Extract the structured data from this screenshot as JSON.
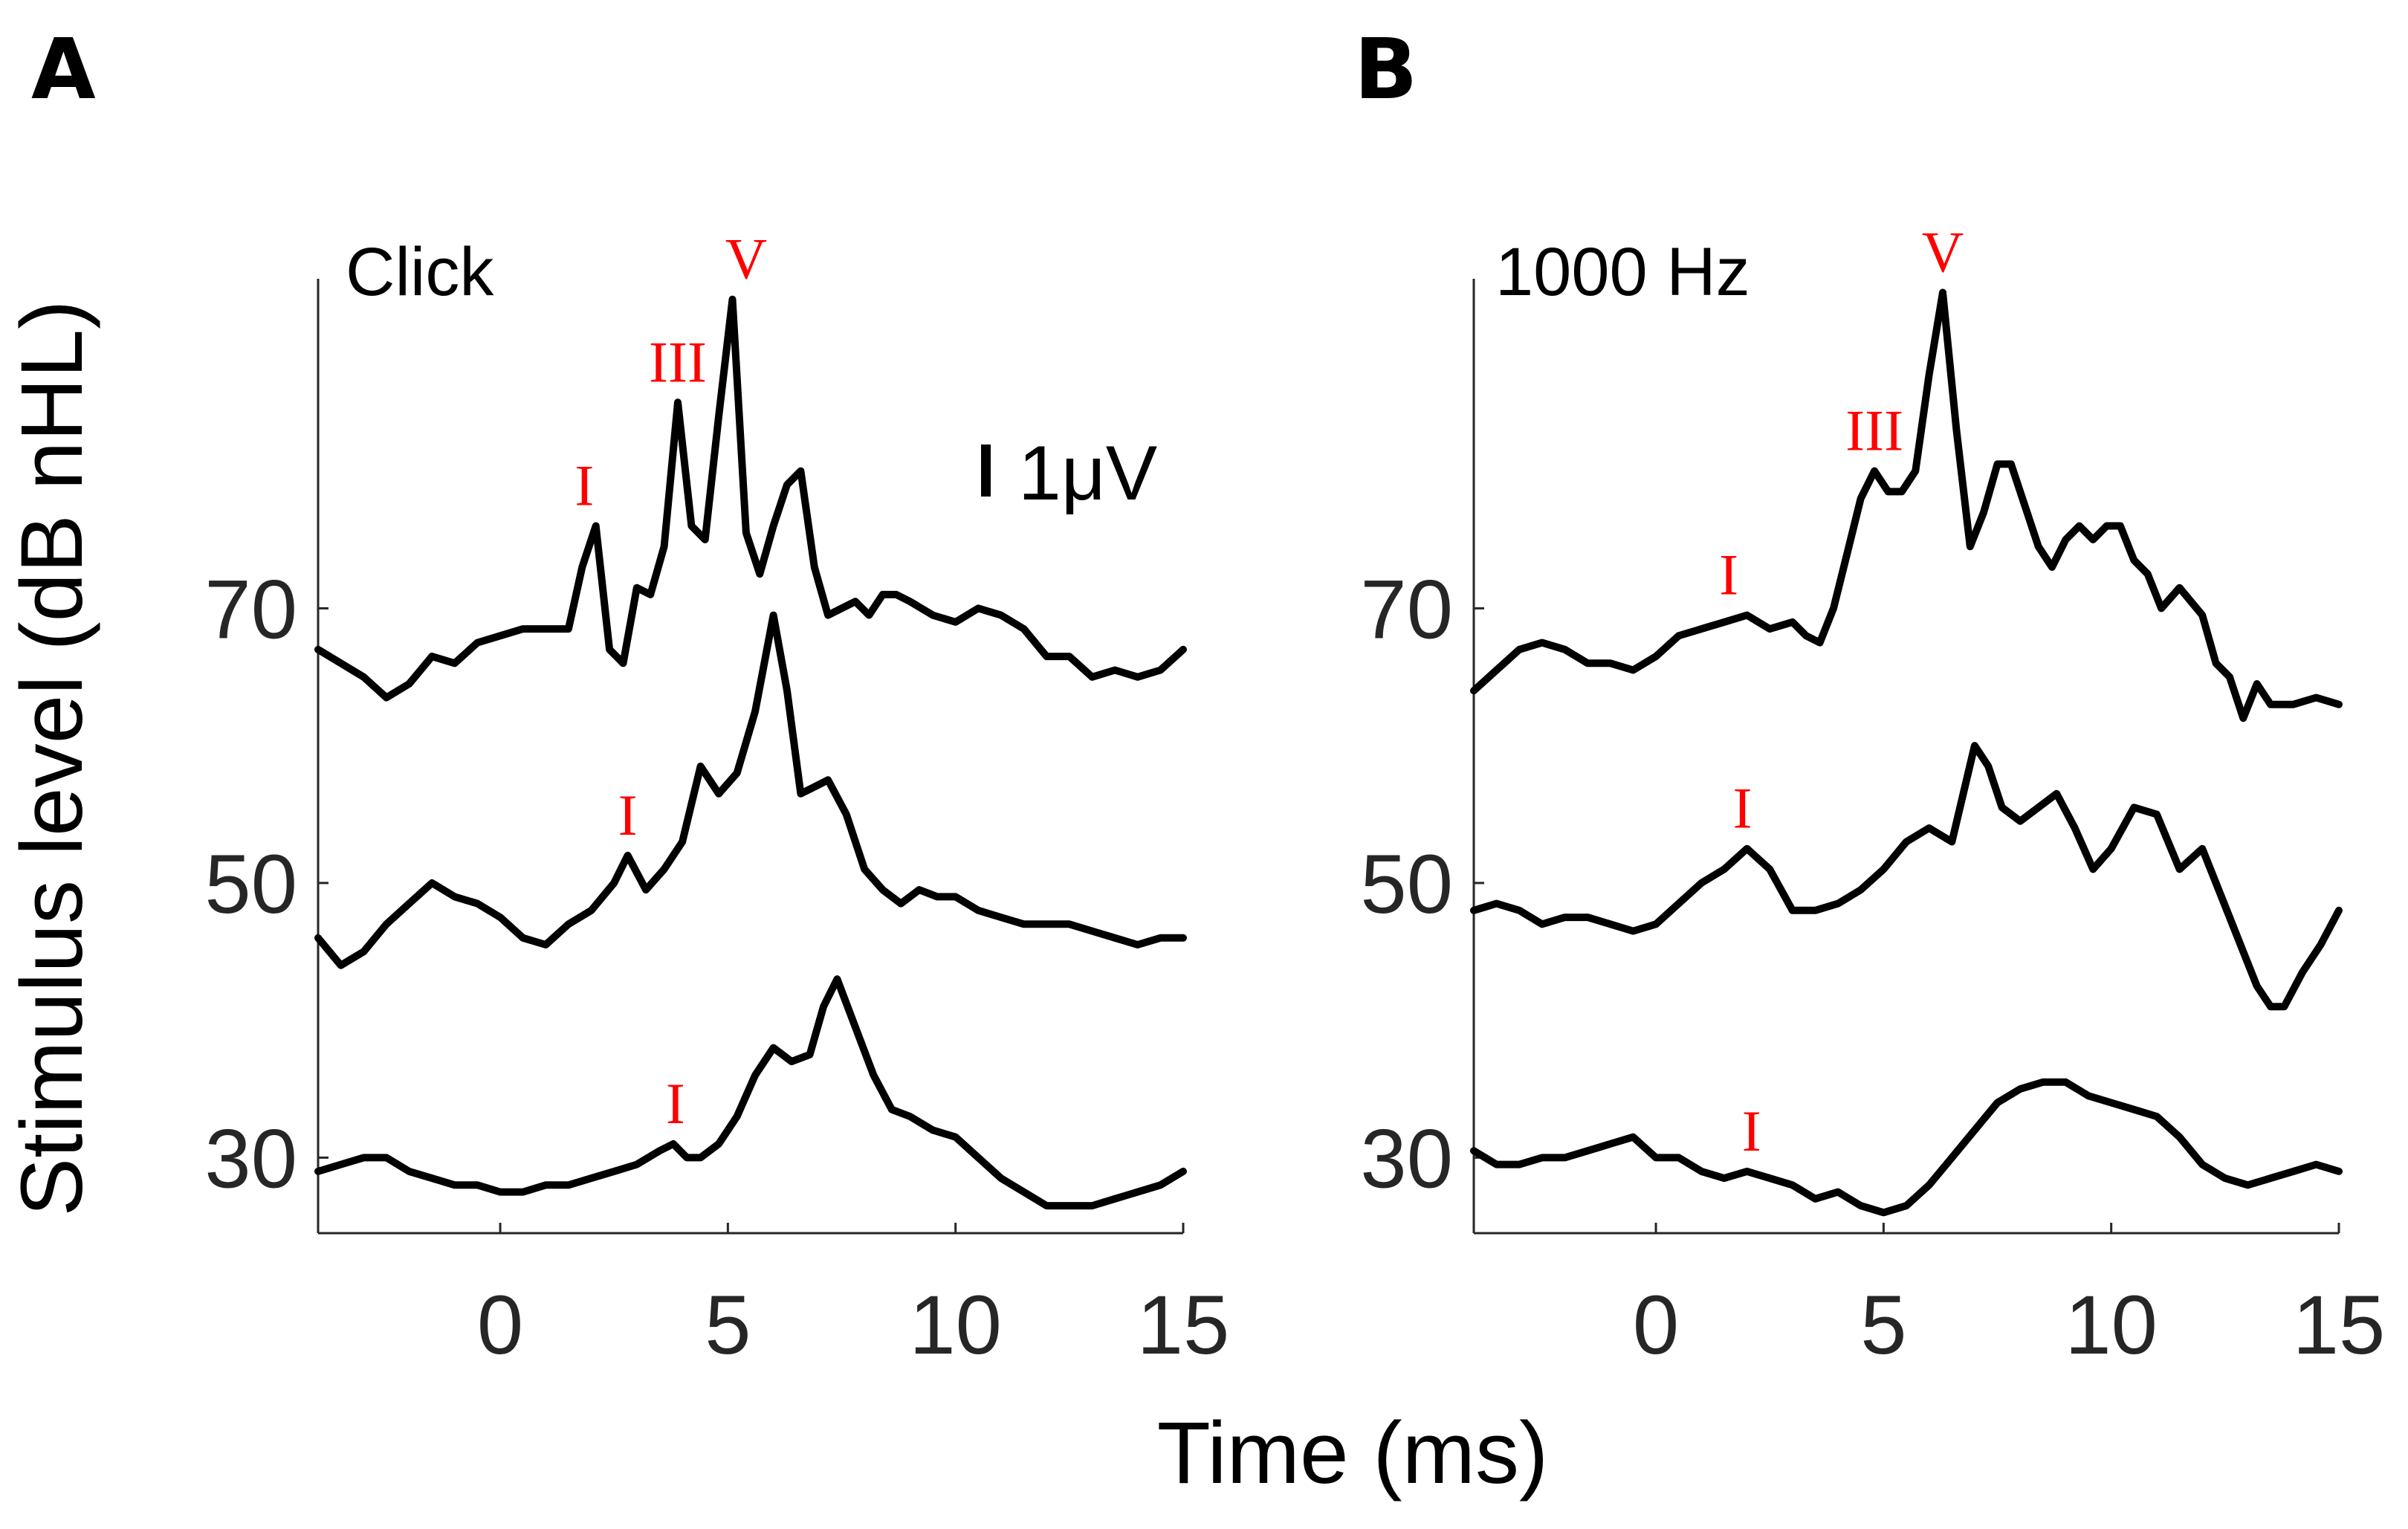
{
  "figure": {
    "ylabel": "Stimulus level (dB nHL)",
    "xlabel": "Time (ms)",
    "scale_bar_label": "1μV"
  },
  "chart_data": [
    {
      "type": "line",
      "panel": "A",
      "stimulus": "Click",
      "xlim": [
        -4,
        15
      ],
      "x_ticks": [
        0,
        5,
        10,
        15
      ],
      "y_ticks": [
        70,
        50,
        30
      ],
      "ylim": [
        24.5,
        94
      ],
      "series": [
        {
          "name": "70",
          "x": [
            -4,
            -3,
            -2.5,
            -2,
            -1.5,
            -1,
            -0.5,
            0,
            0.5,
            1,
            1.5,
            1.8,
            2.1,
            2.4,
            2.7,
            3.0,
            3.3,
            3.6,
            3.9,
            4.2,
            4.5,
            4.8,
            5.1,
            5.4,
            5.7,
            6.0,
            6.3,
            6.6,
            6.9,
            7.2,
            7.5,
            7.8,
            8.1,
            8.4,
            8.7,
            9.0,
            9.5,
            10,
            10.5,
            11,
            11.5,
            12,
            12.5,
            13,
            13.5,
            14,
            14.5,
            15
          ],
          "y": [
            67,
            65,
            63.5,
            64.5,
            66.5,
            66,
            67.5,
            68,
            68.5,
            68.5,
            68.5,
            73,
            76,
            67,
            66,
            71.5,
            71,
            74.5,
            85,
            76,
            75,
            84,
            92.5,
            75.5,
            72.5,
            76,
            79,
            80,
            73,
            69.5,
            70,
            70.5,
            69.5,
            71,
            71,
            70.5,
            69.5,
            69,
            70,
            69.5,
            68.5,
            66.5,
            66.5,
            65,
            65.5,
            65,
            65.5,
            67
          ],
          "peaks": [
            {
              "label": "I",
              "x": 1.85,
              "y": 76
            },
            {
              "label": "III",
              "x": 3.9,
              "y": 85
            },
            {
              "label": "V",
              "x": 5.4,
              "y": 92.5
            }
          ]
        },
        {
          "name": "50",
          "x": [
            -4,
            -3.5,
            -3,
            -2.5,
            -2,
            -1.5,
            -1,
            -0.5,
            0,
            0.5,
            1,
            1.5,
            2,
            2.5,
            2.8,
            3.2,
            3.6,
            4.0,
            4.4,
            4.8,
            5.2,
            5.6,
            6.0,
            6.3,
            6.6,
            6.9,
            7.2,
            7.6,
            8.0,
            8.4,
            8.8,
            9.2,
            9.6,
            10,
            10.5,
            11,
            11.5,
            12,
            12.5,
            13,
            13.5,
            14,
            14.5,
            15
          ],
          "y": [
            46,
            44,
            45,
            47,
            48.5,
            50,
            49,
            48.5,
            47.5,
            46,
            45.5,
            47,
            48,
            50,
            52,
            49.5,
            51,
            53,
            58.5,
            56.5,
            58,
            62.5,
            69.5,
            64,
            56.5,
            57,
            57.5,
            55,
            51,
            49.5,
            48.5,
            49.5,
            49,
            49,
            48,
            47.5,
            47,
            47,
            47,
            46.5,
            46,
            45.5,
            46,
            46
          ],
          "peaks": [
            {
              "label": "I",
              "x": 2.8,
              "y": 52
            }
          ]
        },
        {
          "name": "30",
          "x": [
            -4,
            -3.5,
            -3,
            -2.5,
            -2,
            -1.5,
            -1,
            -0.5,
            0,
            0.5,
            1,
            1.5,
            2,
            2.5,
            3,
            3.5,
            3.8,
            4.1,
            4.4,
            4.8,
            5.2,
            5.6,
            6.0,
            6.4,
            6.8,
            7.1,
            7.4,
            7.8,
            8.2,
            8.6,
            9.0,
            9.5,
            10,
            10.5,
            11,
            11.5,
            12,
            12.5,
            13,
            13.5,
            14,
            14.5,
            15
          ],
          "y": [
            29,
            29.5,
            30,
            30,
            29,
            28.5,
            28,
            28,
            27.5,
            27.5,
            28,
            28,
            28.5,
            29,
            29.5,
            30.5,
            31,
            30,
            30,
            31,
            33,
            36,
            38,
            37,
            37.5,
            41,
            43,
            39.5,
            36,
            33.5,
            33,
            32,
            31.5,
            30,
            28.5,
            27.5,
            26.5,
            26.5,
            26.5,
            27,
            27.5,
            28,
            29
          ],
          "peaks": [
            {
              "label": "I",
              "x": 3.85,
              "y": 31
            }
          ]
        }
      ]
    },
    {
      "type": "line",
      "panel": "B",
      "stimulus": "1000 Hz",
      "xlim": [
        -4,
        15
      ],
      "x_ticks": [
        0,
        5,
        10,
        15
      ],
      "y_ticks": [
        70,
        50,
        30
      ],
      "ylim": [
        24.5,
        94
      ],
      "series": [
        {
          "name": "70",
          "x": [
            -4,
            -3.5,
            -3,
            -2.5,
            -2,
            -1.5,
            -1,
            -0.5,
            0,
            0.5,
            1,
            1.5,
            2,
            2.5,
            3,
            3.3,
            3.6,
            3.9,
            4.2,
            4.5,
            4.8,
            5.1,
            5.4,
            5.7,
            6.0,
            6.3,
            6.6,
            6.9,
            7.2,
            7.5,
            7.8,
            8.1,
            8.4,
            8.7,
            9.0,
            9.3,
            9.6,
            9.9,
            10.2,
            10.5,
            10.8,
            11.1,
            11.5,
            12,
            12.3,
            12.6,
            12.9,
            13.2,
            13.5,
            14,
            14.5,
            15
          ],
          "y": [
            64,
            65.5,
            67,
            67.5,
            67,
            66,
            66,
            65.5,
            66.5,
            68,
            68.5,
            69,
            69.5,
            68.5,
            69,
            68,
            67.5,
            70,
            74,
            78,
            80,
            78.5,
            78.5,
            80,
            87,
            93,
            83,
            74.5,
            77,
            80.5,
            80.5,
            77.5,
            74.5,
            73,
            75,
            76,
            75,
            76,
            76,
            73.5,
            72.5,
            70,
            71.5,
            69.5,
            66,
            65,
            62,
            64.5,
            63,
            63,
            63.5,
            63
          ],
          "peaks": [
            {
              "label": "I",
              "x": 1.6,
              "y": 69.5
            },
            {
              "label": "III",
              "x": 4.8,
              "y": 80
            },
            {
              "label": "V",
              "x": 6.3,
              "y": 93
            }
          ]
        },
        {
          "name": "50",
          "x": [
            -4,
            -3.5,
            -3,
            -2.5,
            -2,
            -1.5,
            -1,
            -0.5,
            0,
            0.5,
            1,
            1.5,
            2,
            2.5,
            3,
            3.5,
            4,
            4.5,
            5,
            5.5,
            6,
            6.5,
            7,
            7.3,
            7.6,
            8,
            8.4,
            8.8,
            9.2,
            9.6,
            10,
            10.5,
            11,
            11.5,
            12,
            12.3,
            12.6,
            12.9,
            13.2,
            13.5,
            13.8,
            14.2,
            14.6,
            15
          ],
          "y": [
            48,
            48.5,
            48,
            47,
            47.5,
            47.5,
            47,
            46.5,
            47,
            48.5,
            50,
            51,
            52.5,
            51,
            48,
            48,
            48.5,
            49.5,
            51,
            53,
            54,
            53,
            60,
            58.5,
            55.5,
            54.5,
            55.5,
            56.5,
            54,
            51,
            52.5,
            55.5,
            55,
            51,
            52.5,
            50,
            47.5,
            45,
            42.5,
            41,
            41,
            43.5,
            45.5,
            48
          ],
          "peaks": [
            {
              "label": "I",
              "x": 1.9,
              "y": 52.5
            }
          ]
        },
        {
          "name": "30",
          "x": [
            -4,
            -3.5,
            -3,
            -2.5,
            -2,
            -1.5,
            -1,
            -0.5,
            0,
            0.5,
            1,
            1.5,
            2,
            2.5,
            3,
            3.5,
            4,
            4.5,
            5,
            5.5,
            6,
            6.5,
            7,
            7.5,
            8,
            8.5,
            9,
            9.5,
            10,
            10.5,
            11,
            11.5,
            12,
            12.5,
            13,
            13.5,
            14,
            14.5,
            15
          ],
          "y": [
            30.5,
            29.5,
            29.5,
            30,
            30,
            30.5,
            31,
            31.5,
            30,
            30,
            29,
            28.5,
            29,
            28.5,
            28,
            27,
            27.5,
            26.5,
            26,
            26.5,
            28,
            30,
            32,
            34,
            35,
            35.5,
            35.5,
            34.5,
            34,
            33.5,
            33,
            31.5,
            29.5,
            28.5,
            28,
            28.5,
            29,
            29.5,
            29
          ],
          "peaks": [
            {
              "label": "I",
              "x": 2.1,
              "y": 29
            }
          ]
        }
      ]
    }
  ]
}
